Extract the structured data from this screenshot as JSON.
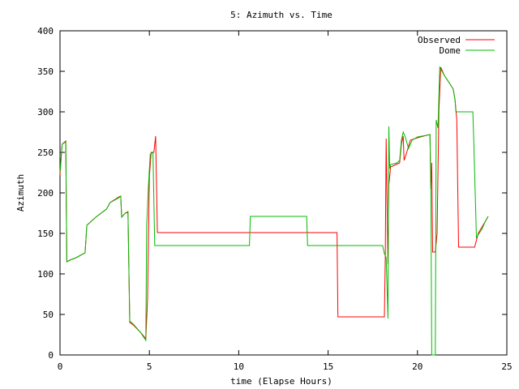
{
  "chart_data": {
    "type": "line",
    "title": "5: Azimuth vs. Time",
    "xlabel": "time (Elapse Hours)",
    "ylabel": "Azimuth",
    "xlim": [
      0,
      25
    ],
    "ylim": [
      0,
      400
    ],
    "xticks": [
      0,
      5,
      10,
      15,
      20,
      25
    ],
    "yticks": [
      0,
      50,
      100,
      150,
      200,
      250,
      300,
      350,
      400
    ],
    "grid": false,
    "legend_position": "top-right",
    "series": [
      {
        "name": "Observed",
        "color": "#ff0000",
        "points": [
          [
            0.0,
            222
          ],
          [
            0.12,
            260
          ],
          [
            0.32,
            264
          ],
          [
            0.38,
            115
          ],
          [
            0.55,
            117
          ],
          [
            0.9,
            120
          ],
          [
            1.4,
            126
          ],
          [
            1.5,
            160
          ],
          [
            2.0,
            170
          ],
          [
            2.6,
            180
          ],
          [
            2.8,
            188
          ],
          [
            3.3,
            195
          ],
          [
            3.4,
            196
          ],
          [
            3.45,
            170
          ],
          [
            3.65,
            175
          ],
          [
            3.8,
            176
          ],
          [
            3.9,
            40
          ],
          [
            4.1,
            37
          ],
          [
            4.5,
            28
          ],
          [
            4.8,
            20
          ],
          [
            4.9,
            70
          ],
          [
            5.0,
            220
          ],
          [
            5.1,
            250
          ],
          [
            5.25,
            250
          ],
          [
            5.35,
            270
          ],
          [
            5.45,
            151
          ],
          [
            15.5,
            151
          ],
          [
            15.55,
            47
          ],
          [
            18.15,
            47
          ],
          [
            18.2,
            120
          ],
          [
            18.25,
            267
          ],
          [
            18.35,
            112
          ],
          [
            18.4,
            210
          ],
          [
            18.5,
            232
          ],
          [
            18.8,
            235
          ],
          [
            19.0,
            237
          ],
          [
            19.1,
            260
          ],
          [
            19.2,
            270
          ],
          [
            19.25,
            240
          ],
          [
            19.4,
            250
          ],
          [
            19.6,
            265
          ],
          [
            20.0,
            268
          ],
          [
            20.5,
            271
          ],
          [
            20.7,
            272
          ],
          [
            20.75,
            205
          ],
          [
            20.8,
            237
          ],
          [
            20.85,
            127
          ],
          [
            21.0,
            127
          ],
          [
            21.1,
            150
          ],
          [
            21.2,
            300
          ],
          [
            21.3,
            355
          ],
          [
            21.5,
            345
          ],
          [
            21.8,
            335
          ],
          [
            22.0,
            328
          ],
          [
            22.1,
            315
          ],
          [
            22.2,
            290
          ],
          [
            22.3,
            133
          ],
          [
            22.9,
            133
          ],
          [
            23.2,
            133
          ],
          [
            23.4,
            150
          ],
          [
            23.8,
            165
          ],
          [
            23.95,
            171
          ]
        ]
      },
      {
        "name": "Dome",
        "color": "#00bb00",
        "points": [
          [
            0.0,
            225
          ],
          [
            0.12,
            260
          ],
          [
            0.32,
            263
          ],
          [
            0.38,
            115
          ],
          [
            0.55,
            117
          ],
          [
            0.9,
            120
          ],
          [
            1.4,
            126
          ],
          [
            1.5,
            160
          ],
          [
            2.0,
            170
          ],
          [
            2.6,
            180
          ],
          [
            2.8,
            188
          ],
          [
            3.3,
            194
          ],
          [
            3.4,
            196
          ],
          [
            3.45,
            170
          ],
          [
            3.65,
            175
          ],
          [
            3.8,
            177
          ],
          [
            3.9,
            42
          ],
          [
            4.1,
            38
          ],
          [
            4.5,
            28
          ],
          [
            4.8,
            18
          ],
          [
            4.85,
            160
          ],
          [
            4.95,
            210
          ],
          [
            5.05,
            248
          ],
          [
            5.2,
            250
          ],
          [
            5.3,
            135
          ],
          [
            10.6,
            135
          ],
          [
            10.65,
            171
          ],
          [
            13.8,
            171
          ],
          [
            13.85,
            135
          ],
          [
            18.05,
            135
          ],
          [
            18.15,
            125
          ],
          [
            18.25,
            120
          ],
          [
            18.35,
            45
          ],
          [
            18.4,
            282
          ],
          [
            18.45,
            230
          ],
          [
            18.5,
            235
          ],
          [
            18.85,
            237
          ],
          [
            19.0,
            240
          ],
          [
            19.1,
            265
          ],
          [
            19.2,
            275
          ],
          [
            19.3,
            270
          ],
          [
            19.5,
            255
          ],
          [
            19.7,
            265
          ],
          [
            20.0,
            269
          ],
          [
            20.5,
            271
          ],
          [
            20.7,
            272
          ],
          [
            20.75,
            210
          ],
          [
            20.8,
            0
          ],
          [
            21.0,
            0
          ],
          [
            21.05,
            290
          ],
          [
            21.15,
            280
          ],
          [
            21.25,
            355
          ],
          [
            21.5,
            345
          ],
          [
            21.8,
            335
          ],
          [
            22.0,
            328
          ],
          [
            22.1,
            315
          ],
          [
            22.15,
            300
          ],
          [
            23.1,
            300
          ],
          [
            23.15,
            265
          ],
          [
            23.3,
            145
          ],
          [
            23.6,
            155
          ],
          [
            23.8,
            165
          ],
          [
            23.95,
            171
          ]
        ]
      }
    ]
  }
}
